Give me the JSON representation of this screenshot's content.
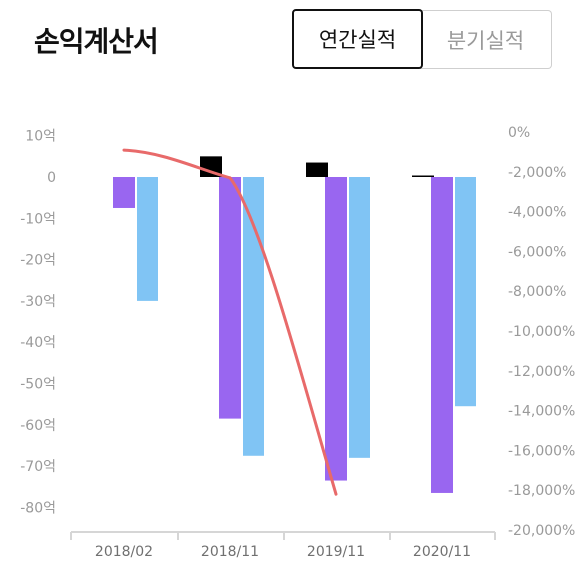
{
  "header": {
    "title": "손익계산서",
    "tabs": [
      {
        "label": "연간실적",
        "active": true
      },
      {
        "label": "분기실적",
        "active": false
      }
    ]
  },
  "colors": {
    "positive_bar": "#000000",
    "series_purple": "#9966f0",
    "series_blue": "#80c4f4",
    "line": "#e86a6a",
    "axis": "#d6d6d6",
    "tick_text": "#9a9a9a"
  },
  "chart_data": {
    "type": "bar",
    "categories": [
      "2018/02",
      "2018/11",
      "2019/11",
      "2020/11"
    ],
    "series": [
      {
        "values": [
          0,
          5,
          3.5,
          0.3
        ],
        "axis": "left",
        "color": "#000000"
      },
      {
        "values": [
          -7.5,
          -58.5,
          -73.5,
          -76.5
        ],
        "axis": "left",
        "color": "#9966f0"
      },
      {
        "values": [
          -30,
          -67.5,
          -68,
          -55.5
        ],
        "axis": "left",
        "color": "#80c4f4"
      },
      {
        "type": "line",
        "values": [
          -910,
          -2300,
          -18200,
          null
        ],
        "axis": "right",
        "color": "#e86a6a"
      }
    ],
    "left_axis": {
      "ylim": [
        -85,
        12
      ],
      "ticks": [
        10,
        0,
        -10,
        -20,
        -30,
        -40,
        -50,
        -60,
        -70,
        -80
      ],
      "tick_labels": [
        "10억",
        "0",
        "-10억",
        "-20억",
        "-30억",
        "-40억",
        "-50억",
        "-60억",
        "-70억",
        "-80억"
      ]
    },
    "right_axis": {
      "ylim": [
        -20000,
        0
      ],
      "ticks": [
        0,
        -2000,
        -4000,
        -6000,
        -8000,
        -10000,
        -12000,
        -14000,
        -16000,
        -18000,
        -20000
      ],
      "tick_labels": [
        "0%",
        "-2,000%",
        "-4,000%",
        "-6,000%",
        "-8,000%",
        "-10,000%",
        "-12,000%",
        "-14,000%",
        "-16,000%",
        "-18,000%",
        "-20,000%"
      ]
    },
    "grid": false,
    "legend": "none"
  }
}
